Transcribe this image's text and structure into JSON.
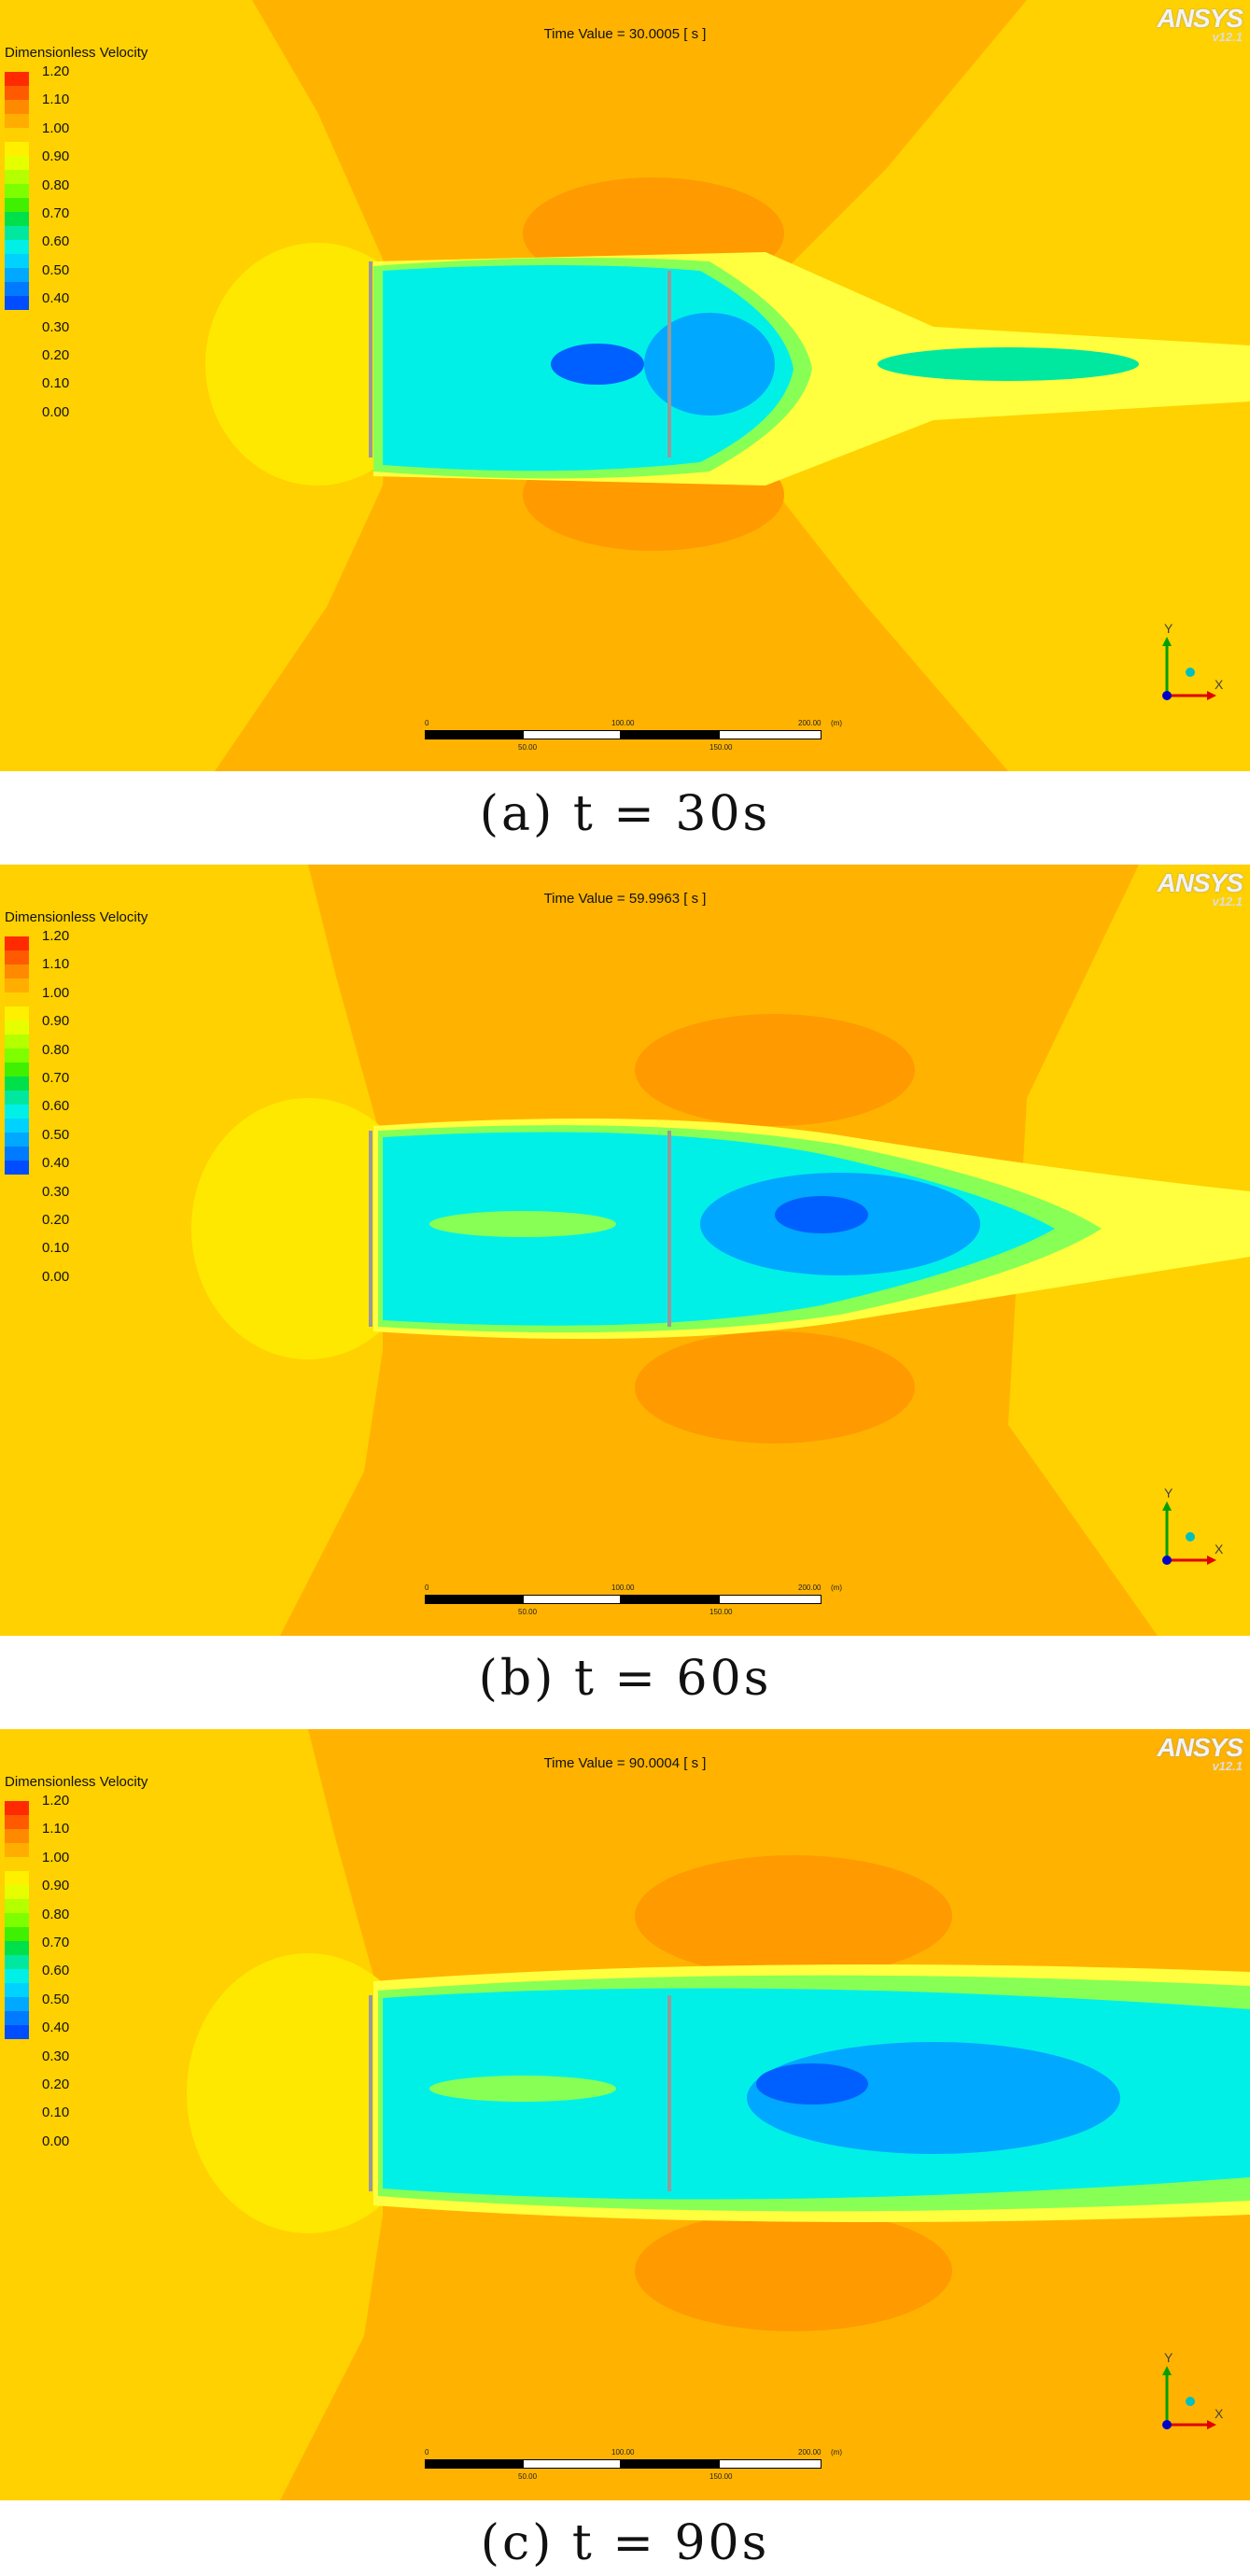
{
  "legend": {
    "title": "Dimensionless Velocity",
    "ticks": [
      "1.20",
      "1.10",
      "1.00",
      "0.90",
      "0.80",
      "0.70",
      "0.60",
      "0.50",
      "0.40",
      "0.30",
      "0.20",
      "0.10",
      "0.00"
    ],
    "colors": [
      "#ff2a00",
      "#ff5a00",
      "#ff8a00",
      "#ffae00",
      "#ffd000",
      "#fff000",
      "#e6ff00",
      "#b4ff00",
      "#7dff00",
      "#3ff000",
      "#00e04a",
      "#00e8a0",
      "#00f0e8",
      "#00d2ff",
      "#00a8ff",
      "#007aff",
      "#004cff",
      "#0020ff"
    ]
  },
  "logo": {
    "brand": "ANSYS",
    "version": "v12.1"
  },
  "scale": {
    "labels_top": [
      "0",
      "100.00",
      "200.00",
      "(m)"
    ],
    "labels_bottom": [
      "50.00",
      "150.00"
    ]
  },
  "axis": {
    "y": "Y",
    "x": "X"
  },
  "panels": [
    {
      "time": "Time Value = 30.0005 [ s ]",
      "caption": "(a) t = 30s"
    },
    {
      "time": "Time Value = 59.9963 [ s ]",
      "caption": "(b) t = 60s"
    },
    {
      "time": "Time Value = 90.0004 [ s ]",
      "caption": "(c) t = 90s"
    }
  ]
}
